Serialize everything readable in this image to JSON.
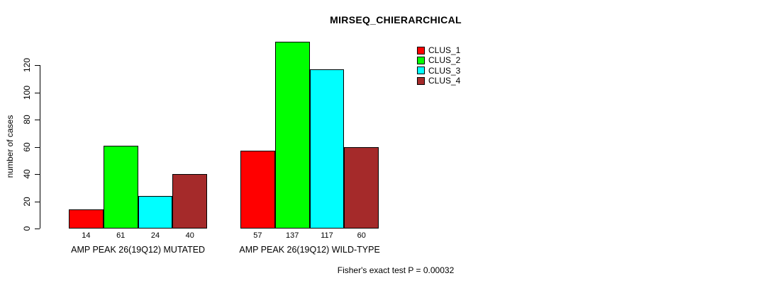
{
  "chart_data": {
    "type": "bar",
    "title": "MIRSEQ_CHIERARCHICAL",
    "xlabel": "",
    "ylabel": "number of cases",
    "ylim": [
      0,
      137
    ],
    "yticks": [
      0,
      20,
      40,
      60,
      80,
      100,
      120
    ],
    "grid": false,
    "legend_position": "top-right",
    "categories": [
      "AMP PEAK 26(19Q12) MUTATED",
      "AMP PEAK 26(19Q12) WILD-TYPE"
    ],
    "series": [
      {
        "name": "CLUS_1",
        "color": "#FF0000",
        "values": [
          14,
          57
        ]
      },
      {
        "name": "CLUS_2",
        "color": "#00FF00",
        "values": [
          61,
          137
        ]
      },
      {
        "name": "CLUS_3",
        "color": "#00FFFF",
        "values": [
          24,
          117
        ]
      },
      {
        "name": "CLUS_4",
        "color": "#A52A2A",
        "values": [
          40,
          60
        ]
      }
    ],
    "bar_value_labels_shown": true,
    "footnote": "Fisher's exact test P = 0.00032"
  },
  "colors": {
    "axis": "#000000",
    "text": "#000000",
    "background": "#FFFFFF"
  }
}
